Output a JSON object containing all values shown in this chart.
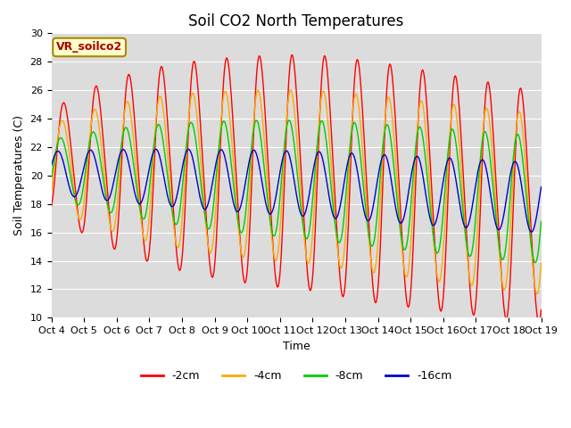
{
  "title": "Soil CO2 North Temperatures",
  "ylabel": "Soil Temperatures (C)",
  "xlabel": "Time",
  "ylim": [
    10,
    30
  ],
  "xtick_labels": [
    "Oct 4",
    "Oct 5",
    "Oct 6",
    "Oct 7",
    "Oct 8",
    "Oct 9",
    "Oct 10",
    "Oct 11",
    "Oct 12",
    "Oct 13",
    "Oct 14",
    "Oct 15",
    "Oct 16",
    "Oct 17",
    "Oct 18",
    "Oct 19"
  ],
  "bg_color": "#dcdcdc",
  "annotation_text": "VR_soilco2",
  "annotation_color": "#aa0000",
  "annotation_bg": "#ffffcc",
  "annotation_edge": "#aa8800",
  "line_colors": [
    "#ff0000",
    "#ffaa00",
    "#00cc00",
    "#0000cc"
  ],
  "line_labels": [
    "-2cm",
    "-4cm",
    "-8cm",
    "-16cm"
  ],
  "title_fontsize": 12,
  "axis_fontsize": 9,
  "tick_fontsize": 8,
  "legend_fontsize": 9,
  "n_points": 720,
  "grid_color": "#ffffff",
  "fig_bg": "#ffffff"
}
